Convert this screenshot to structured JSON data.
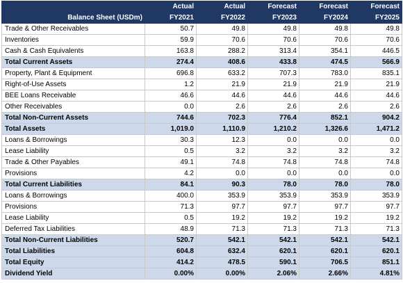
{
  "table": {
    "title": "Balance Sheet (USDm)",
    "columns": [
      {
        "type": "Actual",
        "year": "FY2021"
      },
      {
        "type": "Actual",
        "year": "FY2022"
      },
      {
        "type": "Forecast",
        "year": "FY2023"
      },
      {
        "type": "Forecast",
        "year": "FY2024"
      },
      {
        "type": "Forecast",
        "year": "FY2025"
      }
    ],
    "rows": [
      {
        "label": "Trade & Other Receivables",
        "values": [
          "50.7",
          "49.8",
          "49.8",
          "49.8",
          "49.8"
        ],
        "style": "normal"
      },
      {
        "label": "Inventories",
        "values": [
          "59.9",
          "70.6",
          "70.6",
          "70.6",
          "70.6"
        ],
        "style": "normal"
      },
      {
        "label": "Cash & Cash Equivalents",
        "values": [
          "163.8",
          "288.2",
          "313.4",
          "354.1",
          "446.5"
        ],
        "style": "normal"
      },
      {
        "label": "Total Current Assets",
        "values": [
          "274.4",
          "408.6",
          "433.8",
          "474.5",
          "566.9"
        ],
        "style": "total"
      },
      {
        "label": "Property, Plant & Equipment",
        "values": [
          "696.8",
          "633.2",
          "707.3",
          "783.0",
          "835.1"
        ],
        "style": "normal"
      },
      {
        "label": "Right-of-Use Assets",
        "values": [
          "1.2",
          "21.9",
          "21.9",
          "21.9",
          "21.9"
        ],
        "style": "normal"
      },
      {
        "label": "BEE Loans Receivable",
        "values": [
          "46.6",
          "44.6",
          "44.6",
          "44.6",
          "44.6"
        ],
        "style": "normal"
      },
      {
        "label": "Other Receivables",
        "values": [
          "0.0",
          "2.6",
          "2.6",
          "2.6",
          "2.6"
        ],
        "style": "normal"
      },
      {
        "label": "Total Non-Current Assets",
        "values": [
          "744.6",
          "702.3",
          "776.4",
          "852.1",
          "904.2"
        ],
        "style": "total"
      },
      {
        "label": "Total Assets",
        "values": [
          "1,019.0",
          "1,110.9",
          "1,210.2",
          "1,326.6",
          "1,471.2"
        ],
        "style": "total"
      },
      {
        "label": "Loans & Borrowings",
        "values": [
          "30.3",
          "12.3",
          "0.0",
          "0.0",
          "0.0"
        ],
        "style": "normal"
      },
      {
        "label": "Lease Liability",
        "values": [
          "0.5",
          "3.2",
          "3.2",
          "3.2",
          "3.2"
        ],
        "style": "normal"
      },
      {
        "label": "Trade & Other Payables",
        "values": [
          "49.1",
          "74.8",
          "74.8",
          "74.8",
          "74.8"
        ],
        "style": "normal"
      },
      {
        "label": "Provisions",
        "values": [
          "4.2",
          "0.0",
          "0.0",
          "0.0",
          "0.0"
        ],
        "style": "normal"
      },
      {
        "label": "Total Current Liabilities",
        "values": [
          "84.1",
          "90.3",
          "78.0",
          "78.0",
          "78.0"
        ],
        "style": "total"
      },
      {
        "label": "Loans & Borrowings",
        "values": [
          "400.0",
          "353.9",
          "353.9",
          "353.9",
          "353.9"
        ],
        "style": "normal"
      },
      {
        "label": "Provisions",
        "values": [
          "71.3",
          "97.7",
          "97.7",
          "97.7",
          "97.7"
        ],
        "style": "normal"
      },
      {
        "label": "Lease Liability",
        "values": [
          "0.5",
          "19.2",
          "19.2",
          "19.2",
          "19.2"
        ],
        "style": "normal"
      },
      {
        "label": "Deferred Tax Liabilities",
        "values": [
          "48.9",
          "71.3",
          "71.3",
          "71.3",
          "71.3"
        ],
        "style": "normal"
      },
      {
        "label": "Total Non-Current Liabilities",
        "values": [
          "520.7",
          "542.1",
          "542.1",
          "542.1",
          "542.1"
        ],
        "style": "total"
      },
      {
        "label": "Total Liabilities",
        "values": [
          "604.8",
          "632.4",
          "620.1",
          "620.1",
          "620.1"
        ],
        "style": "total"
      },
      {
        "label": "Total Equity",
        "values": [
          "414.2",
          "478.5",
          "590.1",
          "706.5",
          "851.1"
        ],
        "style": "total"
      },
      {
        "label": "Dividend Yield",
        "values": [
          "0.00%",
          "0.00%",
          "2.06%",
          "2.66%",
          "4.81%"
        ],
        "style": "total"
      }
    ]
  },
  "colors": {
    "header_bg": "#1f3864",
    "header_text": "#ffffff",
    "total_bg": "#cdd9ea",
    "grid": "#c9c9c9"
  }
}
